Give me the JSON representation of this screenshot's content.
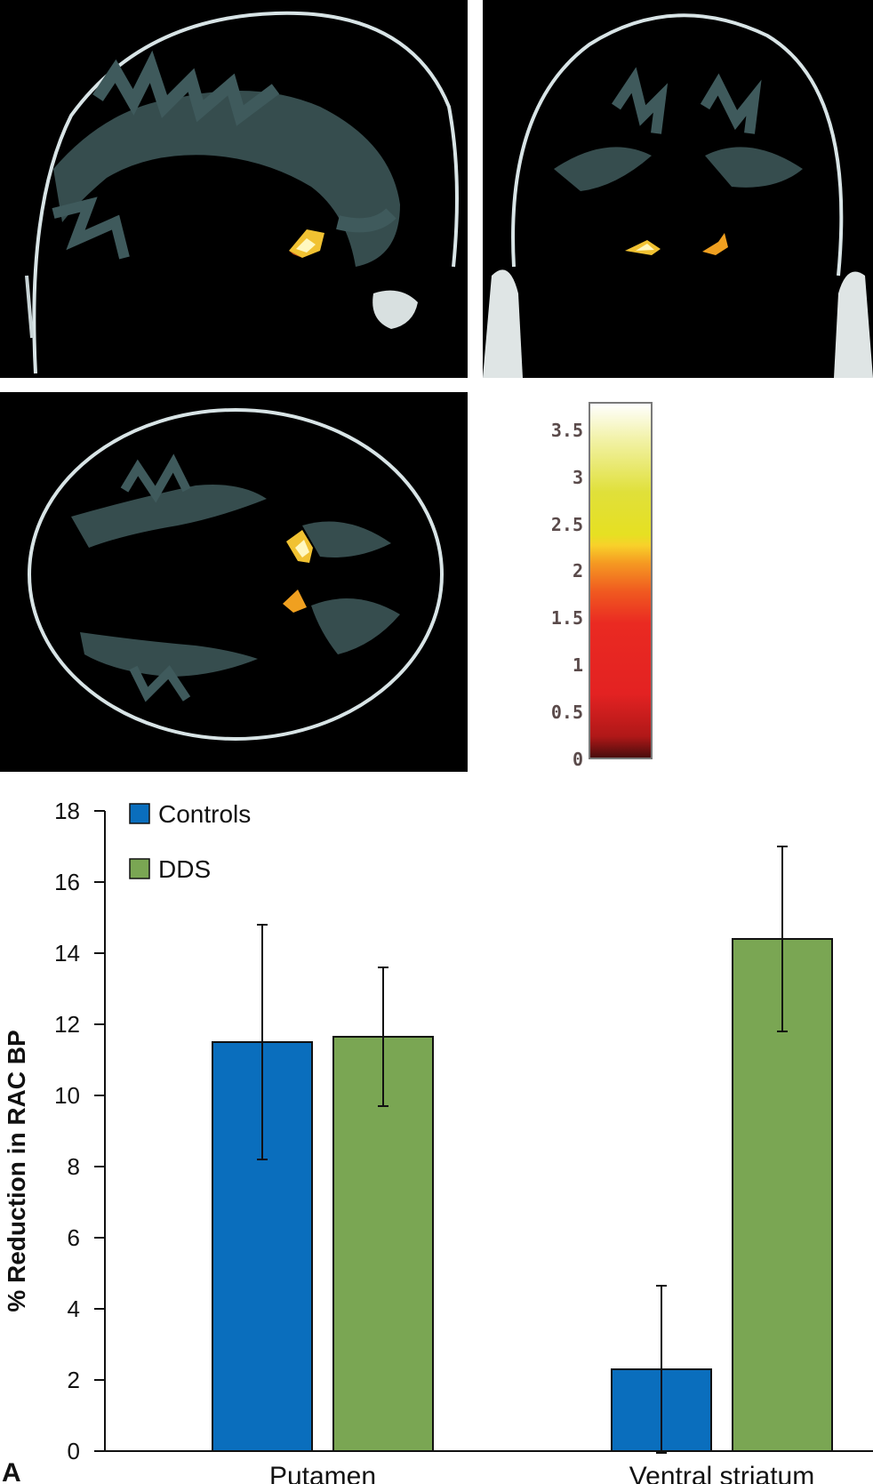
{
  "panel_label": "A",
  "colorbar": {
    "ticks": [
      "3.5",
      "3",
      "2.5",
      "2",
      "1.5",
      "1",
      "0.5",
      "0"
    ],
    "min": 0,
    "max": 3.8
  },
  "colors": {
    "controls": "#0a6ebd",
    "dds": "#7aa653"
  },
  "chart_data": {
    "type": "bar",
    "categories": [
      "Putamen",
      "Ventral striatum"
    ],
    "series": [
      {
        "name": "Controls",
        "values": [
          11.5,
          2.3
        ],
        "error": [
          3.3,
          2.35
        ]
      },
      {
        "name": "DDS",
        "values": [
          11.65,
          14.4
        ],
        "error": [
          1.95,
          2.6
        ]
      }
    ],
    "ylabel": "% Reduction in RAC BP",
    "xlabel": "",
    "ylim": [
      0,
      18
    ],
    "yticks": [
      "0",
      "2",
      "4",
      "6",
      "8",
      "10",
      "12",
      "14",
      "16",
      "18"
    ],
    "legend": "top-left",
    "grid": false
  }
}
